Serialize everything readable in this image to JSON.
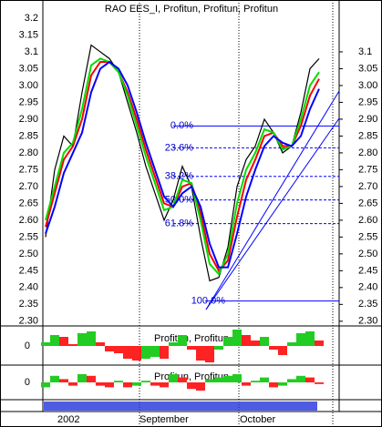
{
  "chart_data": {
    "type": "line",
    "title": "RAO EES_I, Profitun, Profitun, Profitun",
    "categories": [
      null,
      "2002",
      null,
      null,
      null,
      null,
      null,
      null,
      null,
      null,
      "September",
      null,
      null,
      null,
      null,
      null,
      null,
      null,
      null,
      null,
      null,
      "October",
      null,
      null,
      null,
      null,
      null,
      null,
      null,
      null,
      null
    ],
    "series": [
      {
        "color": "#000000",
        "values": [
          2.55,
          2.75,
          2.85,
          2.82,
          2.98,
          3.12,
          3.1,
          3.08,
          3.04,
          2.95,
          2.86,
          2.76,
          2.68,
          2.6,
          2.66,
          2.76,
          2.7,
          2.55,
          2.42,
          2.43,
          2.52,
          2.7,
          2.78,
          2.82,
          2.9,
          2.86,
          2.8,
          2.82,
          2.92,
          3.05,
          3.08
        ]
      },
      {
        "color": "#ff0000",
        "values": [
          2.58,
          2.68,
          2.78,
          2.82,
          2.9,
          3.03,
          3.07,
          3.07,
          3.04,
          2.98,
          2.9,
          2.81,
          2.73,
          2.65,
          2.64,
          2.7,
          2.71,
          2.62,
          2.5,
          2.45,
          2.48,
          2.61,
          2.72,
          2.78,
          2.85,
          2.86,
          2.82,
          2.82,
          2.88,
          2.97,
          3.02
        ]
      },
      {
        "color": "#00dd00",
        "values": [
          2.6,
          2.7,
          2.8,
          2.83,
          2.93,
          3.06,
          3.08,
          3.07,
          3.04,
          2.97,
          2.88,
          2.79,
          2.71,
          2.63,
          2.64,
          2.72,
          2.71,
          2.6,
          2.47,
          2.44,
          2.5,
          2.65,
          2.75,
          2.8,
          2.87,
          2.86,
          2.81,
          2.82,
          2.9,
          3.0,
          3.04
        ]
      },
      {
        "color": "#0000ff",
        "values": [
          2.56,
          2.64,
          2.74,
          2.8,
          2.86,
          2.98,
          3.05,
          3.07,
          3.05,
          3.0,
          2.92,
          2.83,
          2.75,
          2.67,
          2.64,
          2.68,
          2.7,
          2.64,
          2.53,
          2.46,
          2.46,
          2.56,
          2.67,
          2.75,
          2.82,
          2.85,
          2.83,
          2.82,
          2.85,
          2.93,
          2.99
        ]
      }
    ],
    "ylim": [
      2.286,
      3.254
    ],
    "yticks": [
      3.2,
      3.15,
      3.1,
      3.05,
      {
        "value": 3.0,
        "label": "3.00"
      },
      2.95,
      {
        "value": 2.9,
        "label": "2.90"
      },
      2.85,
      {
        "value": 2.8,
        "label": "2.80"
      },
      2.75,
      {
        "value": 2.7,
        "label": "2.70"
      },
      2.65,
      {
        "value": 2.6,
        "label": "2.60"
      },
      2.55,
      {
        "value": 2.5,
        "label": "2.50"
      },
      2.45,
      {
        "value": 2.4,
        "label": "2.40"
      },
      2.35,
      {
        "value": 2.3,
        "label": "2.30"
      }
    ],
    "y2ticks": [
      3.1,
      3.05,
      {
        "value": 3.0,
        "label": "3.00"
      },
      2.95,
      {
        "value": 2.9,
        "label": "2.90"
      },
      2.85,
      {
        "value": 2.8,
        "label": "2.80"
      },
      2.75,
      {
        "value": 2.7,
        "label": "2.70"
      },
      2.65,
      {
        "value": 2.6,
        "label": "2.60"
      },
      2.55,
      {
        "value": 2.5,
        "label": "2.50"
      },
      2.45,
      {
        "value": 2.4,
        "label": "2.40"
      },
      2.35,
      {
        "value": 2.3,
        "label": "2.30"
      }
    ],
    "fib_levels": [
      {
        "label": "0.0%",
        "value": 2.88
      },
      {
        "label": "23.6%",
        "value": 2.815
      },
      {
        "label": "38.2%",
        "value": 2.73
      },
      {
        "label": "50.0%",
        "value": 2.66
      },
      {
        "label": "61.8%",
        "value": 2.59
      },
      {
        "label": "100.0%",
        "value": 2.36
      }
    ],
    "panels": [
      {
        "type": "bar",
        "title": "Profitun, Profitun",
        "ylim": [
          -1,
          1
        ],
        "yticks": [
          0
        ],
        "values": [
          0.2,
          0.6,
          0.5,
          0.1,
          0.7,
          0.8,
          0.2,
          -0.3,
          -0.4,
          -0.7,
          -0.8,
          -0.7,
          -0.6,
          -0.7,
          0.2,
          0.6,
          -0.2,
          -0.8,
          -0.9,
          -0.2,
          0.5,
          0.9,
          0.6,
          0.3,
          0.5,
          -0.2,
          -0.5,
          0.2,
          0.7,
          0.8,
          0.3
        ]
      },
      {
        "type": "bar",
        "title": "Profitun, Profitun",
        "ylim": [
          -1,
          1
        ],
        "yticks": [
          0
        ],
        "values": [
          -0.3,
          0.4,
          0.2,
          -0.2,
          0.5,
          0.4,
          -0.2,
          -0.3,
          0.1,
          -0.3,
          -0.2,
          0.1,
          -0.2,
          -0.3,
          0.5,
          0.3,
          -0.4,
          -0.5,
          0.2,
          0.3,
          0.4,
          0.5,
          -0.2,
          0.1,
          0.3,
          -0.3,
          -0.2,
          0.2,
          0.4,
          0.3,
          -0.1
        ]
      }
    ]
  }
}
